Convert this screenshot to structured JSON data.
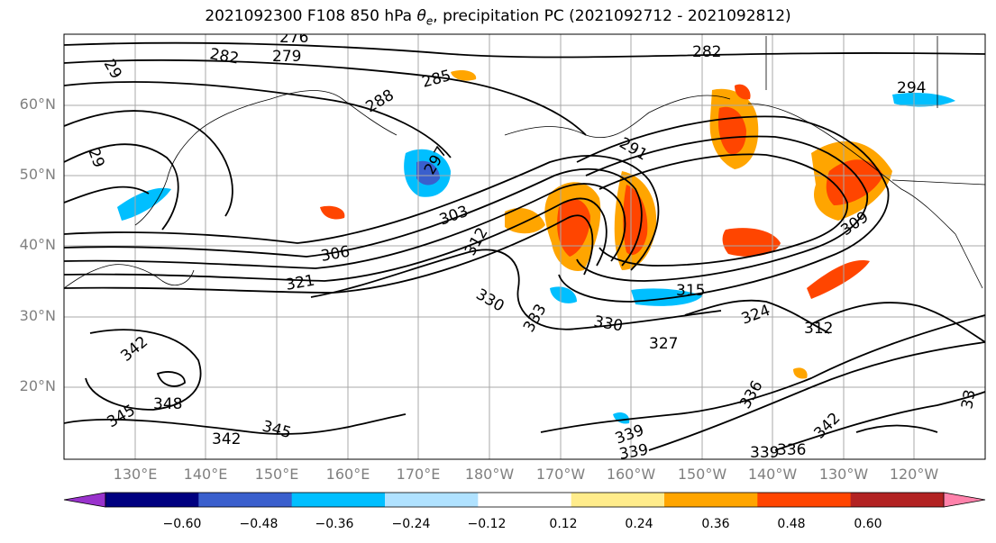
{
  "title": {
    "prefix": "2021092300 F108 850 hPa ",
    "symbol": "θ",
    "symbol_sub": "e",
    "suffix": ", precipitation PC (2021092712 - 2021092812)"
  },
  "lat_labels": [
    "60°N",
    "50°N",
    "40°N",
    "30°N",
    "20°N"
  ],
  "lon_labels": [
    "130°E",
    "140°E",
    "150°E",
    "160°E",
    "170°E",
    "180°W",
    "170°W",
    "160°W",
    "150°W",
    "140°W",
    "130°W",
    "120°W"
  ],
  "contour_labels": [
    "276",
    "282",
    "279",
    "29",
    "282",
    "285",
    "288",
    "294",
    "29",
    "297",
    "291",
    "303",
    "306",
    "309",
    "312",
    "315",
    "321",
    "330",
    "333",
    "330",
    "327",
    "324",
    "312",
    "342",
    "345",
    "348",
    "345",
    "342",
    "339",
    "339",
    "336",
    "342",
    "339",
    "336",
    "33"
  ],
  "colorbar": {
    "ticks": [
      "−0.60",
      "−0.48",
      "−0.36",
      "−0.24",
      "−0.12",
      "0.12",
      "0.24",
      "0.36",
      "0.48",
      "0.60"
    ],
    "colors": [
      "#9932cc",
      "#000080",
      "#3a5fcd",
      "#00bfff",
      "#b0e2ff",
      "#ffffff",
      "#ffec8b",
      "#ffa500",
      "#ff4500",
      "#b22222",
      "#ff82ab"
    ],
    "extend_low_color": "#9932cc",
    "extend_high_color": "#ff82ab"
  },
  "colors": {
    "grid": "#a9a9a9",
    "contour": "#000000",
    "axis_label": "#808080"
  }
}
